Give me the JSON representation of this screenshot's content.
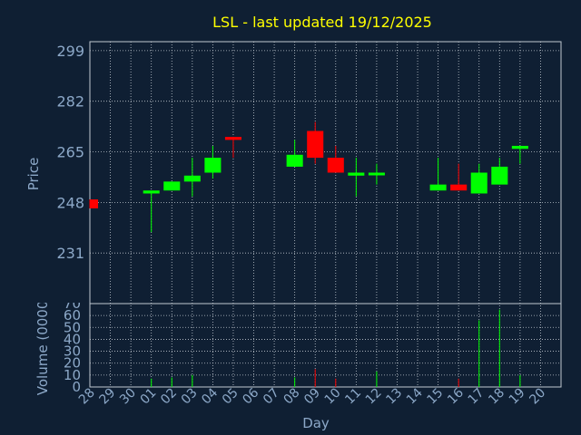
{
  "chart_data": {
    "type": "candlestick",
    "title": "LSL - last updated 19/12/2025",
    "price_panel": {
      "ylabel": "Price",
      "ylim": [
        214,
        302
      ],
      "yticks": [
        231,
        248,
        265,
        282,
        299
      ]
    },
    "volume_panel": {
      "ylabel": "Volume (0000)",
      "ylim": [
        0,
        70
      ],
      "yticks": [
        0,
        10,
        20,
        30,
        40,
        50,
        60,
        70
      ]
    },
    "xlabel": "Day",
    "days": [
      "28",
      "29",
      "30",
      "01",
      "02",
      "03",
      "04",
      "05",
      "06",
      "07",
      "08",
      "09",
      "10",
      "11",
      "12",
      "13",
      "14",
      "15",
      "16",
      "17",
      "18",
      "19",
      "20"
    ],
    "candles": [
      {
        "day": "28",
        "open": 249,
        "high": 249,
        "low": 246,
        "close": 246,
        "volume": 0
      },
      {
        "day": "01",
        "open": 251,
        "high": 252,
        "low": 238,
        "close": 252,
        "volume": 7
      },
      {
        "day": "02",
        "open": 252,
        "high": 255,
        "low": 252,
        "close": 255,
        "volume": 8
      },
      {
        "day": "03",
        "open": 255,
        "high": 263,
        "low": 250,
        "close": 257,
        "volume": 10
      },
      {
        "day": "04",
        "open": 258,
        "high": 267,
        "low": 256,
        "close": 263,
        "volume": 0
      },
      {
        "day": "05",
        "open": 270,
        "high": 270,
        "low": 263,
        "close": 269,
        "volume": 0
      },
      {
        "day": "08",
        "open": 260,
        "high": 269,
        "low": 260,
        "close": 264,
        "volume": 8
      },
      {
        "day": "09",
        "open": 272,
        "high": 275,
        "low": 261,
        "close": 263,
        "volume": 15
      },
      {
        "day": "10",
        "open": 263,
        "high": 267,
        "low": 258,
        "close": 258,
        "volume": 7
      },
      {
        "day": "11",
        "open": 257,
        "high": 263,
        "low": 250,
        "close": 258,
        "volume": 0
      },
      {
        "day": "12",
        "open": 258,
        "high": 261,
        "low": 254,
        "close": 258,
        "volume": 13
      },
      {
        "day": "15",
        "open": 252,
        "high": 263,
        "low": 252,
        "close": 254,
        "volume": 0
      },
      {
        "day": "16",
        "open": 254,
        "high": 261,
        "low": 252,
        "close": 252,
        "volume": 7
      },
      {
        "day": "17",
        "open": 251,
        "high": 261,
        "low": 251,
        "close": 258,
        "volume": 56
      },
      {
        "day": "18",
        "open": 254,
        "high": 263,
        "low": 254,
        "close": 260,
        "volume": 65
      },
      {
        "day": "19",
        "open": 266,
        "high": 267,
        "low": 261,
        "close": 267,
        "volume": 10
      }
    ],
    "grid": true
  },
  "colors": {
    "background": "#0f1f33",
    "text": "#8ca8c8",
    "title": "#ffff00",
    "grid": "#c0c8d0",
    "up": "#00ff00",
    "down": "#ff0000"
  }
}
